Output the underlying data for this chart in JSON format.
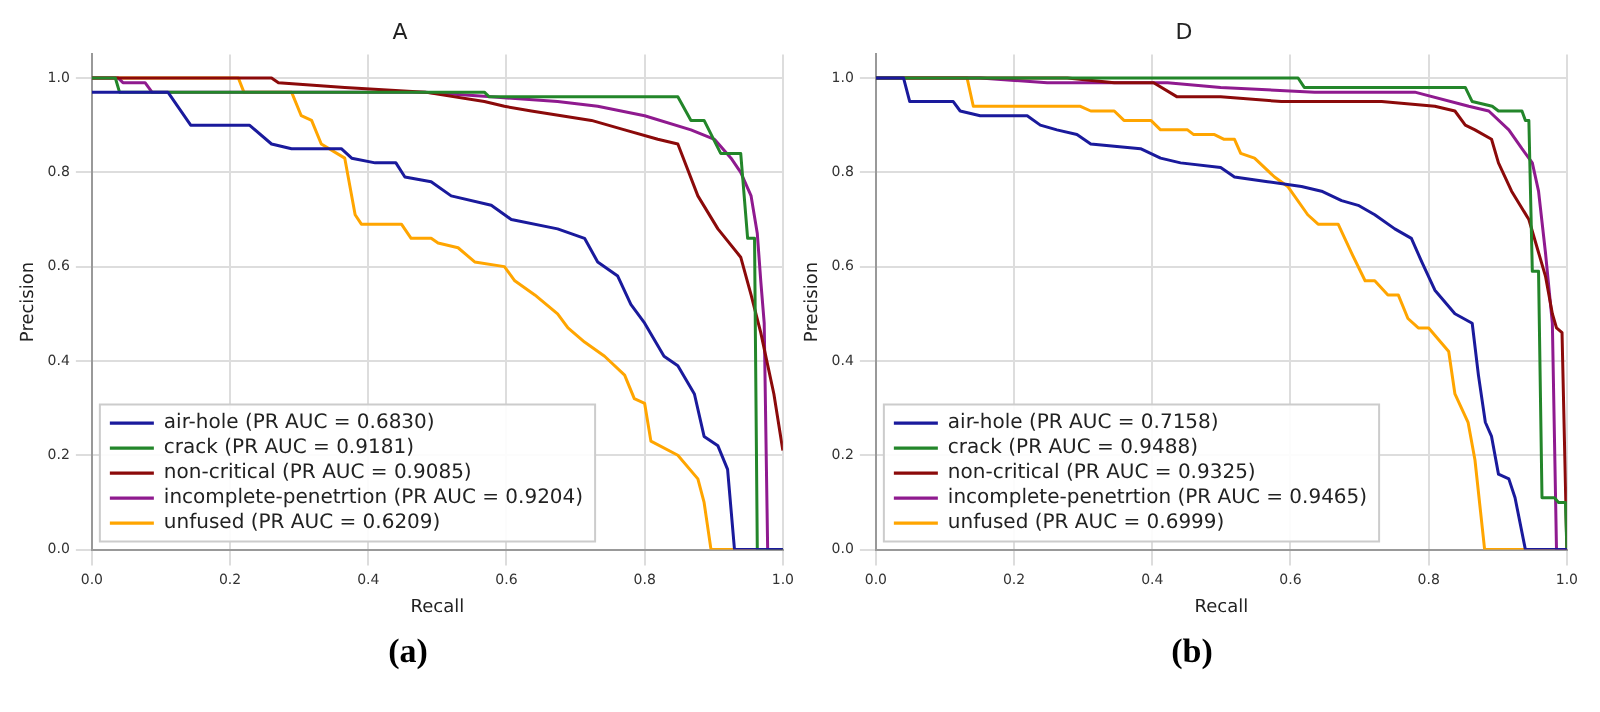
{
  "chart_data": [
    {
      "type": "line",
      "title": "A",
      "xlabel": "Recall",
      "ylabel": "Precision",
      "annotations": [
        "(a)"
      ],
      "legend": "lower left",
      "grid": true,
      "xlim": [
        0,
        1
      ],
      "ylim": [
        0,
        1.05
      ],
      "xticks": [
        {
          "value": 0,
          "label": "0.0"
        },
        {
          "value": 0.2,
          "label": "0.2"
        },
        {
          "value": 0.4,
          "label": "0.4"
        },
        {
          "value": 0.6,
          "label": "0.6"
        },
        {
          "value": 0.8,
          "label": "0.8"
        },
        {
          "value": 1,
          "label": "1.0"
        }
      ],
      "yticks": [
        {
          "value": 0,
          "label": "0.0"
        },
        {
          "value": 0.2,
          "label": "0.2"
        },
        {
          "value": 0.4,
          "label": "0.4"
        },
        {
          "value": 0.6,
          "label": "0.6"
        },
        {
          "value": 0.8,
          "label": "0.8"
        },
        {
          "value": 1,
          "label": "1.0"
        }
      ],
      "series": [
        {
          "name": "air-hole (PR AUC = 0.6830)",
          "color": "#1a1a9c",
          "x": [
            0,
            0.11,
            0.143,
            0.228,
            0.26,
            0.289,
            0.361,
            0.376,
            0.41,
            0.44,
            0.453,
            0.491,
            0.52,
            0.578,
            0.607,
            0.674,
            0.713,
            0.732,
            0.761,
            0.78,
            0.8,
            0.828,
            0.848,
            0.872,
            0.886,
            0.906,
            0.92,
            0.93,
            1
          ],
          "values": [
            0.97,
            0.97,
            0.9,
            0.9,
            0.86,
            0.85,
            0.85,
            0.83,
            0.82,
            0.82,
            0.79,
            0.78,
            0.75,
            0.73,
            0.7,
            0.68,
            0.66,
            0.61,
            0.58,
            0.52,
            0.48,
            0.41,
            0.39,
            0.33,
            0.24,
            0.22,
            0.17,
            0,
            0
          ]
        },
        {
          "name": "crack (PR AUC = 0.9181)",
          "color": "#23862a",
          "x": [
            0,
            0.034,
            0.04,
            0.568,
            0.575,
            0.848,
            0.867,
            0.886,
            0.91,
            0.939,
            0.949,
            0.959,
            0.963,
            1
          ],
          "values": [
            1,
            1,
            0.97,
            0.97,
            0.96,
            0.96,
            0.91,
            0.91,
            0.84,
            0.84,
            0.66,
            0.66,
            0,
            0
          ]
        },
        {
          "name": "non-critical (PR AUC = 0.9085)",
          "color": "#8b0a0a",
          "x": [
            0,
            0.26,
            0.27,
            0.366,
            0.482,
            0.568,
            0.597,
            0.636,
            0.723,
            0.771,
            0.819,
            0.848,
            0.877,
            0.906,
            0.939,
            0.954,
            0.968,
            0.987,
            1
          ],
          "values": [
            1,
            1,
            0.99,
            0.98,
            0.97,
            0.95,
            0.94,
            0.93,
            0.91,
            0.89,
            0.87,
            0.86,
            0.75,
            0.68,
            0.62,
            0.54,
            0.46,
            0.33,
            0.21
          ]
        },
        {
          "name": "incomplete-penetrtion (PR AUC = 0.9204)",
          "color": "#8f1a8f",
          "x": [
            0,
            0.038,
            0.045,
            0.077,
            0.087,
            0.482,
            0.578,
            0.674,
            0.732,
            0.8,
            0.867,
            0.901,
            0.925,
            0.939,
            0.954,
            0.963,
            0.968,
            0.973,
            0.978,
            1
          ],
          "values": [
            1,
            1,
            0.99,
            0.99,
            0.97,
            0.97,
            0.96,
            0.95,
            0.94,
            0.92,
            0.89,
            0.87,
            0.83,
            0.8,
            0.75,
            0.67,
            0.57,
            0.48,
            0,
            0
          ]
        },
        {
          "name": "unfused (PR AUC = 0.6209)",
          "color": "#ffa500",
          "x": [
            0,
            0.212,
            0.22,
            0.289,
            0.303,
            0.318,
            0.332,
            0.366,
            0.381,
            0.39,
            0.448,
            0.462,
            0.491,
            0.501,
            0.53,
            0.554,
            0.597,
            0.612,
            0.641,
            0.674,
            0.689,
            0.713,
            0.742,
            0.771,
            0.785,
            0.8,
            0.809,
            0.848,
            0.877,
            0.886,
            0.896,
            1
          ],
          "values": [
            1,
            1,
            0.97,
            0.97,
            0.92,
            0.91,
            0.86,
            0.83,
            0.71,
            0.69,
            0.69,
            0.66,
            0.66,
            0.65,
            0.64,
            0.61,
            0.6,
            0.57,
            0.54,
            0.5,
            0.47,
            0.44,
            0.41,
            0.37,
            0.32,
            0.31,
            0.23,
            0.2,
            0.15,
            0.1,
            0,
            0
          ]
        }
      ]
    },
    {
      "type": "line",
      "title": "D",
      "xlabel": "Recall",
      "ylabel": "Precision",
      "annotations": [
        "(b)"
      ],
      "legend": "lower left",
      "grid": true,
      "xlim": [
        0,
        1
      ],
      "ylim": [
        0,
        1.05
      ],
      "xticks": [
        {
          "value": 0,
          "label": "0.0"
        },
        {
          "value": 0.2,
          "label": "0.2"
        },
        {
          "value": 0.4,
          "label": "0.4"
        },
        {
          "value": 0.6,
          "label": "0.6"
        },
        {
          "value": 0.8,
          "label": "0.8"
        },
        {
          "value": 1,
          "label": "1.0"
        }
      ],
      "yticks": [
        {
          "value": 0,
          "label": "0.0"
        },
        {
          "value": 0.2,
          "label": "0.2"
        },
        {
          "value": 0.4,
          "label": "0.4"
        },
        {
          "value": 0.6,
          "label": "0.6"
        },
        {
          "value": 0.8,
          "label": "0.8"
        },
        {
          "value": 1,
          "label": "1.0"
        }
      ],
      "series": [
        {
          "name": "air-hole (PR AUC = 0.7158)",
          "color": "#1a1a9c",
          "x": [
            0,
            0.04,
            0.049,
            0.112,
            0.122,
            0.151,
            0.219,
            0.238,
            0.262,
            0.291,
            0.311,
            0.383,
            0.412,
            0.441,
            0.499,
            0.519,
            0.567,
            0.616,
            0.645,
            0.674,
            0.698,
            0.722,
            0.751,
            0.775,
            0.79,
            0.809,
            0.838,
            0.863,
            0.872,
            0.882,
            0.891,
            0.901,
            0.916,
            0.925,
            0.94,
            1
          ],
          "values": [
            1,
            1,
            0.95,
            0.95,
            0.93,
            0.92,
            0.92,
            0.9,
            0.89,
            0.88,
            0.86,
            0.85,
            0.83,
            0.82,
            0.81,
            0.79,
            0.78,
            0.77,
            0.76,
            0.74,
            0.73,
            0.71,
            0.68,
            0.66,
            0.61,
            0.55,
            0.5,
            0.48,
            0.37,
            0.27,
            0.24,
            0.16,
            0.15,
            0.11,
            0,
            0
          ]
        },
        {
          "name": "crack (PR AUC = 0.9488)",
          "color": "#23862a",
          "x": [
            0,
            0.611,
            0.62,
            0.853,
            0.863,
            0.892,
            0.901,
            0.935,
            0.94,
            0.945,
            0.95,
            0.959,
            0.964,
            0.982,
            0.988,
            0.998,
            1
          ],
          "values": [
            1,
            1,
            0.98,
            0.98,
            0.95,
            0.94,
            0.93,
            0.93,
            0.91,
            0.91,
            0.59,
            0.59,
            0.11,
            0.11,
            0.1,
            0.1,
            0
          ]
        },
        {
          "name": "non-critical (PR AUC = 0.9325)",
          "color": "#8b0a0a",
          "x": [
            0,
            0.277,
            0.345,
            0.402,
            0.436,
            0.499,
            0.587,
            0.732,
            0.809,
            0.838,
            0.853,
            0.867,
            0.891,
            0.901,
            0.92,
            0.945,
            0.959,
            0.969,
            0.979,
            0.985,
            0.993,
            1
          ],
          "values": [
            1,
            1,
            0.99,
            0.99,
            0.96,
            0.96,
            0.95,
            0.95,
            0.94,
            0.93,
            0.9,
            0.89,
            0.87,
            0.82,
            0.76,
            0.7,
            0.63,
            0.58,
            0.5,
            0.47,
            0.46,
            0
          ]
        },
        {
          "name": "incomplete-penetrtion (PR AUC = 0.9465)",
          "color": "#8f1a8f",
          "x": [
            0,
            0.151,
            0.248,
            0.422,
            0.499,
            0.635,
            0.78,
            0.858,
            0.887,
            0.916,
            0.935,
            0.95,
            0.959,
            0.969,
            0.979,
            0.985,
            1
          ],
          "values": [
            1,
            1,
            0.99,
            0.99,
            0.98,
            0.97,
            0.97,
            0.94,
            0.93,
            0.89,
            0.85,
            0.82,
            0.76,
            0.63,
            0.48,
            0,
            0
          ]
        },
        {
          "name": "unfused (PR AUC = 0.6999)",
          "color": "#ffa500",
          "x": [
            0,
            0.132,
            0.141,
            0.296,
            0.311,
            0.345,
            0.359,
            0.398,
            0.412,
            0.451,
            0.46,
            0.49,
            0.504,
            0.519,
            0.528,
            0.548,
            0.577,
            0.596,
            0.625,
            0.64,
            0.669,
            0.688,
            0.708,
            0.722,
            0.741,
            0.756,
            0.77,
            0.785,
            0.8,
            0.829,
            0.838,
            0.857,
            0.867,
            0.881,
            1
          ],
          "values": [
            1,
            1,
            0.94,
            0.94,
            0.93,
            0.93,
            0.91,
            0.91,
            0.89,
            0.89,
            0.88,
            0.88,
            0.87,
            0.87,
            0.84,
            0.83,
            0.79,
            0.77,
            0.71,
            0.69,
            0.69,
            0.63,
            0.57,
            0.57,
            0.54,
            0.54,
            0.49,
            0.47,
            0.47,
            0.42,
            0.33,
            0.27,
            0.19,
            0,
            0
          ]
        }
      ]
    }
  ]
}
